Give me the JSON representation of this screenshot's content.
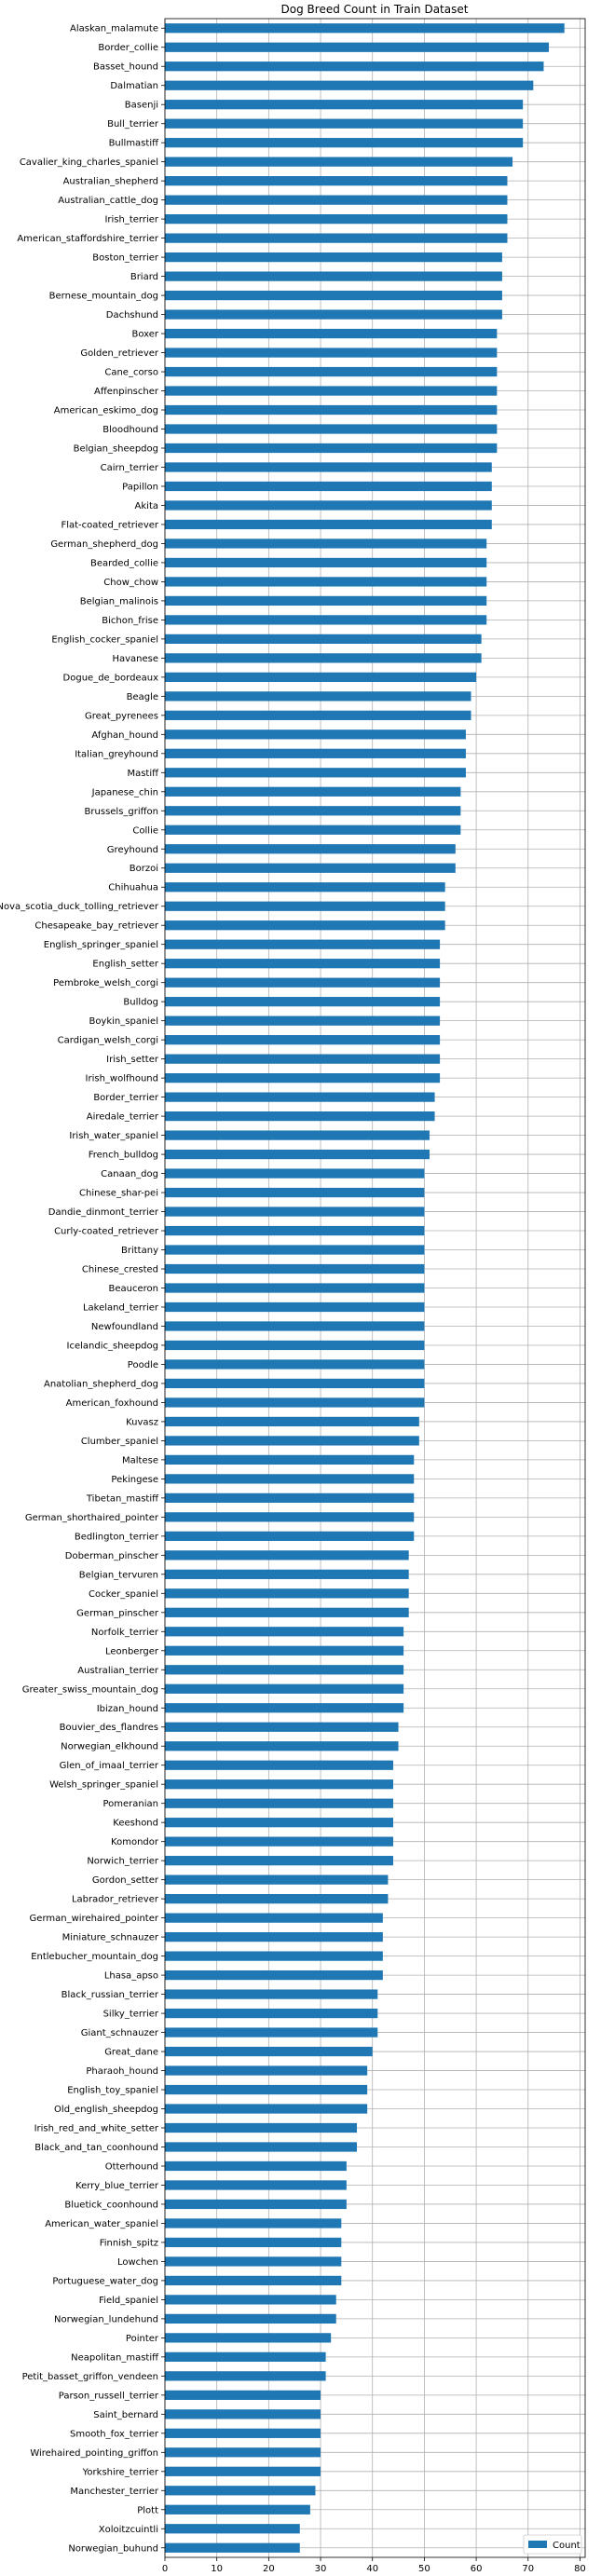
{
  "chart_data": {
    "type": "bar",
    "orientation": "horizontal",
    "title": "Dog Breed Count in Train Dataset",
    "xlabel": "",
    "ylabel": "",
    "xlim": [
      0,
      81
    ],
    "xticks": [
      0,
      10,
      20,
      30,
      40,
      50,
      60,
      70,
      80
    ],
    "grid": true,
    "legend": {
      "position": "bottom-right",
      "entries": [
        "Count"
      ]
    },
    "series": [
      {
        "name": "Count",
        "color": "#1f77b4"
      }
    ],
    "categories": [
      "Alaskan_malamute",
      "Border_collie",
      "Basset_hound",
      "Dalmatian",
      "Basenji",
      "Bull_terrier",
      "Bullmastiff",
      "Cavalier_king_charles_spaniel",
      "Australian_shepherd",
      "Australian_cattle_dog",
      "Irish_terrier",
      "American_staffordshire_terrier",
      "Boston_terrier",
      "Briard",
      "Bernese_mountain_dog",
      "Dachshund",
      "Boxer",
      "Golden_retriever",
      "Cane_corso",
      "Affenpinscher",
      "American_eskimo_dog",
      "Bloodhound",
      "Belgian_sheepdog",
      "Cairn_terrier",
      "Papillon",
      "Akita",
      "Flat-coated_retriever",
      "German_shepherd_dog",
      "Bearded_collie",
      "Chow_chow",
      "Belgian_malinois",
      "Bichon_frise",
      "English_cocker_spaniel",
      "Havanese",
      "Dogue_de_bordeaux",
      "Beagle",
      "Great_pyrenees",
      "Afghan_hound",
      "Italian_greyhound",
      "Mastiff",
      "Japanese_chin",
      "Brussels_griffon",
      "Collie",
      "Greyhound",
      "Borzoi",
      "Chihuahua",
      "Nova_scotia_duck_tolling_retriever",
      "Chesapeake_bay_retriever",
      "English_springer_spaniel",
      "English_setter",
      "Pembroke_welsh_corgi",
      "Bulldog",
      "Boykin_spaniel",
      "Cardigan_welsh_corgi",
      "Irish_setter",
      "Irish_wolfhound",
      "Border_terrier",
      "Airedale_terrier",
      "Irish_water_spaniel",
      "French_bulldog",
      "Canaan_dog",
      "Chinese_shar-pei",
      "Dandie_dinmont_terrier",
      "Curly-coated_retriever",
      "Brittany",
      "Chinese_crested",
      "Beauceron",
      "Lakeland_terrier",
      "Newfoundland",
      "Icelandic_sheepdog",
      "Poodle",
      "Anatolian_shepherd_dog",
      "American_foxhound",
      "Kuvasz",
      "Clumber_spaniel",
      "Maltese",
      "Pekingese",
      "Tibetan_mastiff",
      "German_shorthaired_pointer",
      "Bedlington_terrier",
      "Doberman_pinscher",
      "Belgian_tervuren",
      "Cocker_spaniel",
      "German_pinscher",
      "Norfolk_terrier",
      "Leonberger",
      "Australian_terrier",
      "Greater_swiss_mountain_dog",
      "Ibizan_hound",
      "Bouvier_des_flandres",
      "Norwegian_elkhound",
      "Glen_of_imaal_terrier",
      "Welsh_springer_spaniel",
      "Pomeranian",
      "Keeshond",
      "Komondor",
      "Norwich_terrier",
      "Gordon_setter",
      "Labrador_retriever",
      "German_wirehaired_pointer",
      "Miniature_schnauzer",
      "Entlebucher_mountain_dog",
      "Lhasa_apso",
      "Black_russian_terrier",
      "Silky_terrier",
      "Giant_schnauzer",
      "Great_dane",
      "Pharaoh_hound",
      "English_toy_spaniel",
      "Old_english_sheepdog",
      "Irish_red_and_white_setter",
      "Black_and_tan_coonhound",
      "Otterhound",
      "Kerry_blue_terrier",
      "Bluetick_coonhound",
      "American_water_spaniel",
      "Finnish_spitz",
      "Lowchen",
      "Portuguese_water_dog",
      "Field_spaniel",
      "Norwegian_lundehund",
      "Pointer",
      "Neapolitan_mastiff",
      "Petit_basset_griffon_vendeen",
      "Parson_russell_terrier",
      "Saint_bernard",
      "Smooth_fox_terrier",
      "Wirehaired_pointing_griffon",
      "Yorkshire_terrier",
      "Manchester_terrier",
      "Plott",
      "Xoloitzcuintli",
      "Norwegian_buhund"
    ],
    "values": [
      77,
      74,
      73,
      71,
      69,
      69,
      69,
      67,
      66,
      66,
      66,
      66,
      65,
      65,
      65,
      65,
      64,
      64,
      64,
      64,
      64,
      64,
      64,
      63,
      63,
      63,
      63,
      62,
      62,
      62,
      62,
      62,
      61,
      61,
      60,
      59,
      59,
      58,
      58,
      58,
      57,
      57,
      57,
      56,
      56,
      54,
      54,
      54,
      53,
      53,
      53,
      53,
      53,
      53,
      53,
      53,
      52,
      52,
      51,
      51,
      50,
      50,
      50,
      50,
      50,
      50,
      50,
      50,
      50,
      50,
      50,
      50,
      50,
      49,
      49,
      48,
      48,
      48,
      48,
      48,
      47,
      47,
      47,
      47,
      46,
      46,
      46,
      46,
      46,
      45,
      45,
      44,
      44,
      44,
      44,
      44,
      44,
      43,
      43,
      42,
      42,
      42,
      42,
      41,
      41,
      41,
      40,
      39,
      39,
      39,
      37,
      37,
      35,
      35,
      35,
      34,
      34,
      34,
      34,
      33,
      33,
      32,
      31,
      31,
      30,
      30,
      30,
      30,
      30,
      29,
      28,
      26,
      26
    ]
  }
}
